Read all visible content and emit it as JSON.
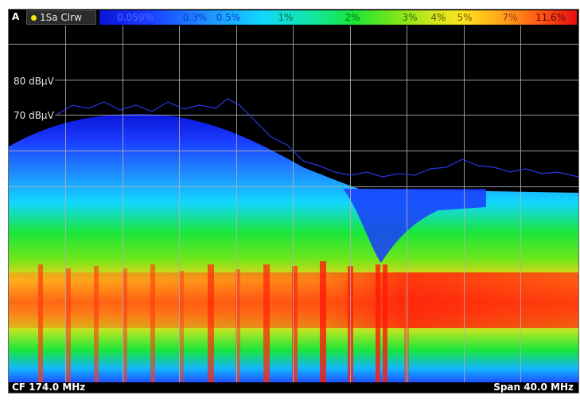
{
  "header": {
    "window_label": "A",
    "trace_label": "1Sa Clrw",
    "trace_dot_color": "#f2e619"
  },
  "colorbar": {
    "labels": [
      "0.059%",
      "0.3%",
      "0.5%",
      "1%",
      "2%",
      "3%",
      "4%",
      "5%",
      "7%",
      "11.6%"
    ],
    "colors": [
      "#0a14d8",
      "#1f8cff",
      "#12d7ff",
      "#19e63c",
      "#ffe41f",
      "#ff5a14",
      "#e60f0f"
    ]
  },
  "plot": {
    "y_labels": [
      "80 dBµV",
      "70 dBµV"
    ],
    "background": "#000000",
    "grid_color": "#b0b0b0"
  },
  "footer": {
    "center_frequency": "CF 174.0 MHz",
    "span": "Span 40.0 MHz"
  }
}
